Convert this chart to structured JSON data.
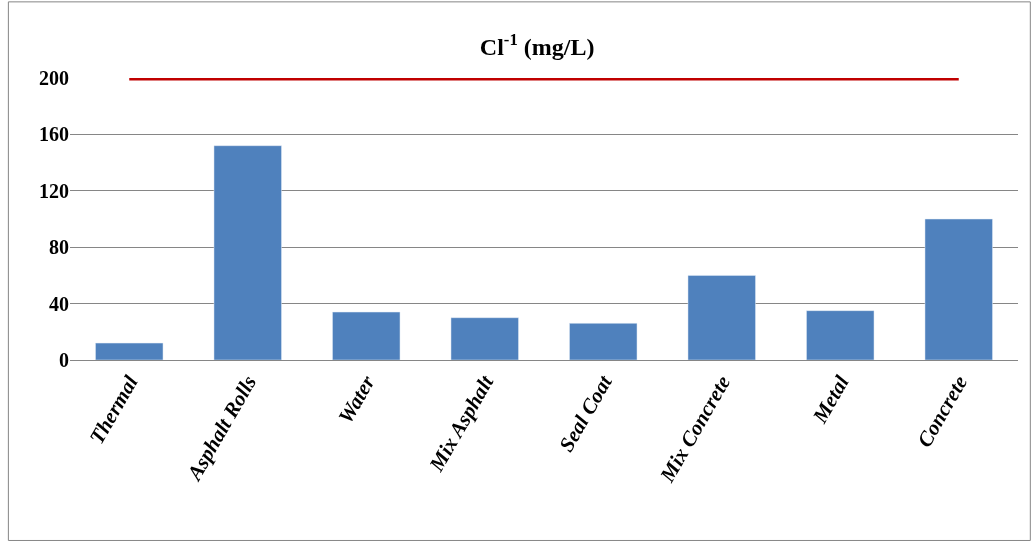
{
  "chart_data": {
    "type": "bar",
    "title": "Cl$^{-1}$ (mg/L)",
    "categories": [
      "Thermal",
      "Asphalt Rolls",
      "Water",
      "Mix Asphalt",
      "Seal Coat",
      "Mix Concrete",
      "Metal",
      "Concrete"
    ],
    "values": [
      12,
      152,
      34,
      30,
      26,
      60,
      35,
      100
    ],
    "color": "#4f81bd",
    "ylim": [
      0,
      200
    ],
    "yticks": [
      0,
      40,
      80,
      120,
      160,
      200
    ],
    "grid": "y",
    "ref_lines": [
      {
        "axis": "y",
        "value": 200,
        "color": "#c00000"
      }
    ]
  }
}
